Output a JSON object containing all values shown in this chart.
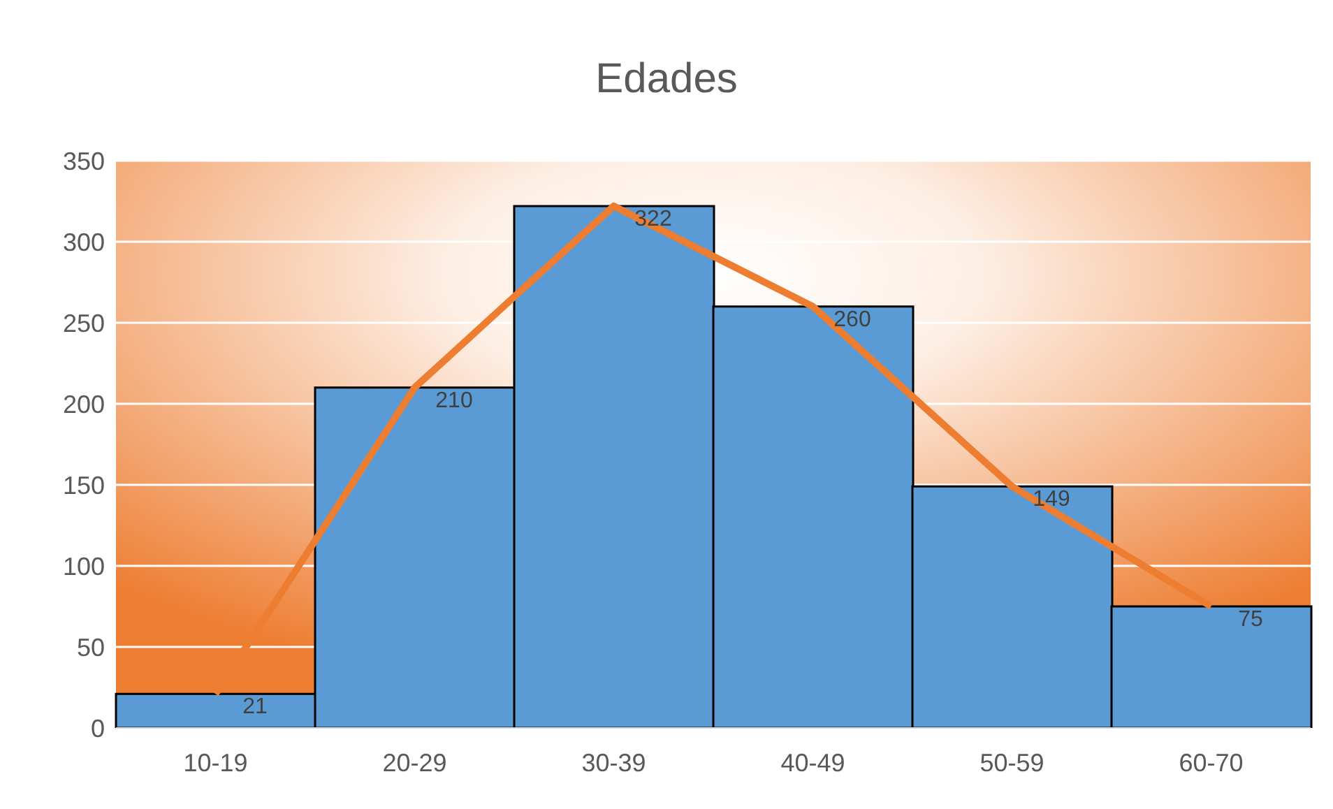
{
  "chart_data": {
    "type": "bar",
    "title": "Edades",
    "categories": [
      "10-19",
      "20-29",
      "30-39",
      "40-49",
      "50-59",
      "60-70"
    ],
    "series": [
      {
        "color": "#5b9bd5",
        "values": [
          21,
          210,
          322,
          260,
          149,
          75
        ],
        "value_labels": [
          "21",
          "210",
          "322",
          "260",
          "149",
          "75"
        ]
      },
      {
        "type": "line",
        "color": "#ed7d31",
        "values": [
          21,
          210,
          322,
          260,
          149,
          75
        ]
      }
    ],
    "ylim": [
      0,
      350
    ],
    "yticks": [
      0,
      50,
      100,
      150,
      200,
      250,
      300,
      350
    ],
    "grid": "y",
    "marker": "none",
    "line_style": "solid"
  }
}
